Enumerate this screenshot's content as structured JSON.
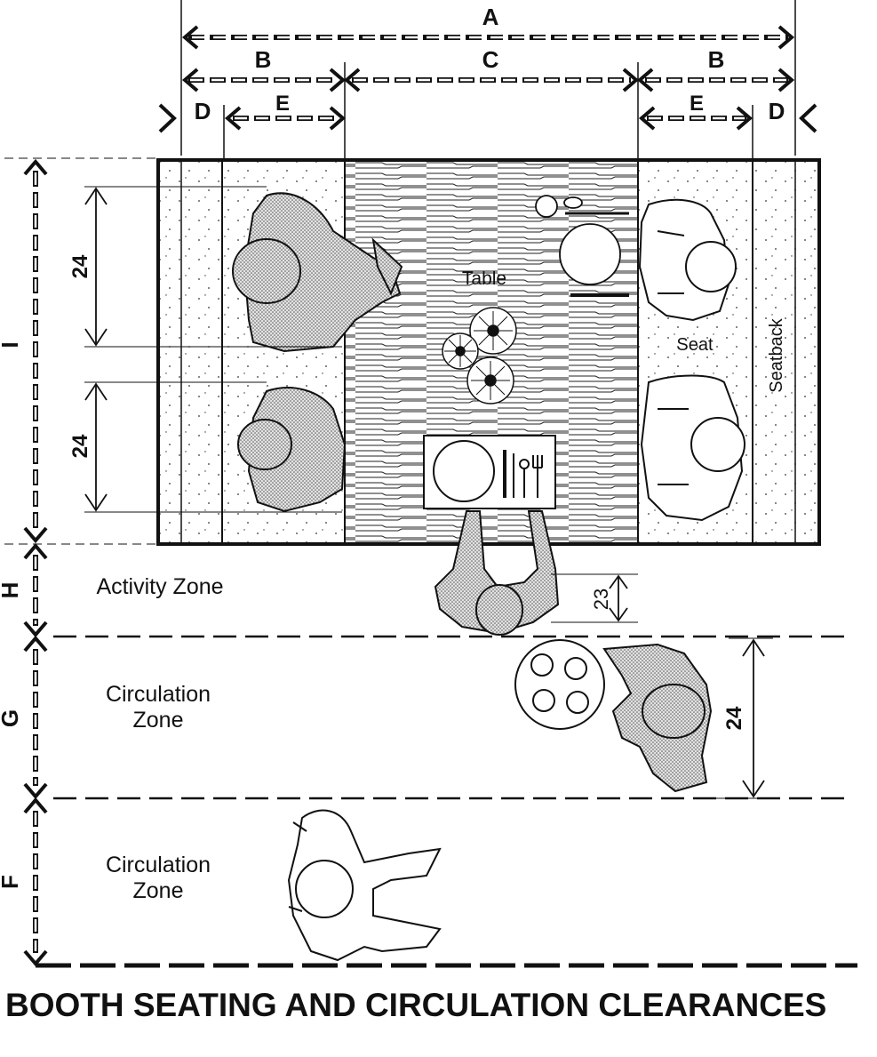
{
  "title": "BOOTH SEATING AND CIRCULATION CLEARANCES",
  "dimension_letters": {
    "A": "A",
    "B": "B",
    "C": "C",
    "D": "D",
    "E": "E",
    "F": "F",
    "G": "G",
    "H": "H",
    "I": "I"
  },
  "measurements": {
    "seat_depth_upper": "24",
    "seat_depth_lower": "24",
    "activity_zone_depth": "23",
    "circulation_zone_depth": "24"
  },
  "labels": {
    "table": "Table",
    "seat": "Seat",
    "seatback": "Seatback",
    "activity_zone": "Activity Zone",
    "circulation_zone_line1": "Circulation",
    "circulation_zone_line2": "Zone"
  },
  "colors": {
    "ink": "#111111",
    "figure_fill": "#bdbdbd",
    "background": "#ffffff"
  }
}
